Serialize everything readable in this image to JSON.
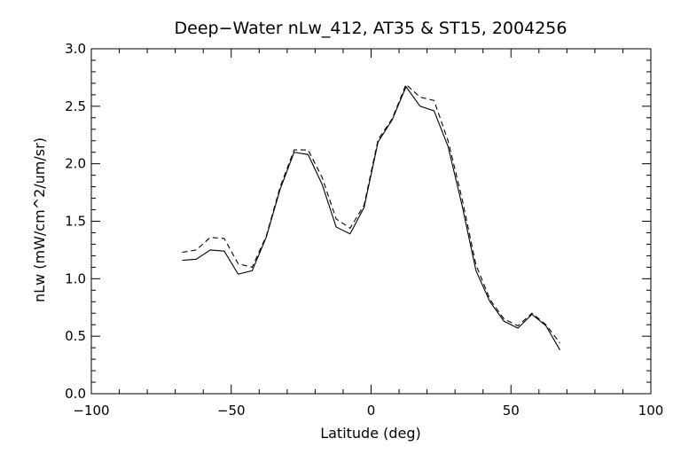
{
  "chart_data": {
    "type": "line",
    "title": "Deep−Water nLw_412, AT35 & ST15, 2004256",
    "xlabel": "Latitude (deg)",
    "ylabel": "nLw (mW/cm^2/um/sr)",
    "xlim": [
      -100,
      100
    ],
    "ylim": [
      0.0,
      3.0
    ],
    "xticks": [
      -100,
      -50,
      0,
      50,
      100
    ],
    "xtick_labels": [
      "−100",
      "−50",
      "0",
      "50",
      "100"
    ],
    "yticks": [
      0.0,
      0.5,
      1.0,
      1.5,
      2.0,
      2.5,
      3.0
    ],
    "ytick_labels": [
      "0.0",
      "0.5",
      "1.0",
      "1.5",
      "2.0",
      "2.5",
      "3.0"
    ],
    "grid": false,
    "legend": "none",
    "series": [
      {
        "style": "solid",
        "x": [
          -67.5,
          -62.5,
          -57.5,
          -52.5,
          -47.5,
          -42.5,
          -37.5,
          -32.5,
          -27.5,
          -22.5,
          -17.5,
          -12.5,
          -7.5,
          -2.5,
          2.5,
          7.5,
          12.5,
          17.5,
          22.5,
          27.5,
          32.5,
          37.5,
          42.5,
          47.5,
          52.5,
          57.5,
          62.5,
          67.5
        ],
        "y": [
          1.16,
          1.17,
          1.25,
          1.24,
          1.04,
          1.07,
          1.36,
          1.78,
          2.1,
          2.08,
          1.82,
          1.45,
          1.39,
          1.62,
          2.19,
          2.38,
          2.67,
          2.5,
          2.46,
          2.15,
          1.64,
          1.07,
          0.8,
          0.63,
          0.57,
          0.69,
          0.59,
          0.38
        ]
      },
      {
        "style": "dashed",
        "x": [
          -67.5,
          -62.5,
          -57.5,
          -52.5,
          -47.5,
          -42.5,
          -37.5,
          -32.5,
          -27.5,
          -22.5,
          -17.5,
          -12.5,
          -7.5,
          -2.5,
          2.5,
          7.5,
          12.5,
          17.5,
          22.5,
          27.5,
          32.5,
          37.5,
          42.5,
          47.5,
          52.5,
          57.5,
          62.5,
          67.5
        ],
        "y": [
          1.23,
          1.25,
          1.36,
          1.35,
          1.13,
          1.1,
          1.37,
          1.8,
          2.12,
          2.12,
          1.88,
          1.52,
          1.44,
          1.64,
          2.21,
          2.39,
          2.69,
          2.58,
          2.55,
          2.2,
          1.7,
          1.12,
          0.82,
          0.65,
          0.59,
          0.7,
          0.6,
          0.44
        ]
      }
    ]
  }
}
